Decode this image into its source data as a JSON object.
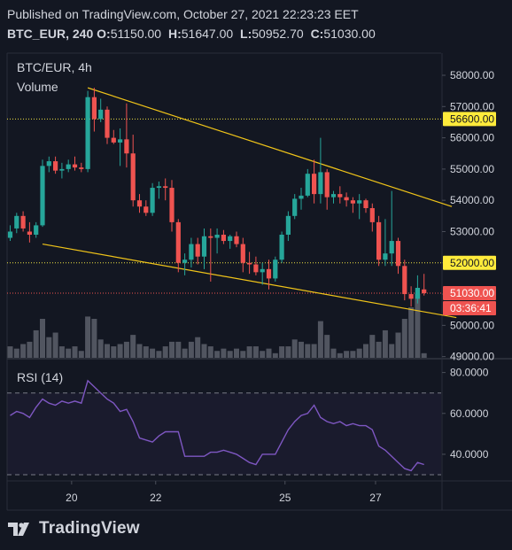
{
  "header": {
    "published": "Published on TradingView.com, October 27, 2021 22:23:23 EET",
    "symbol": "BTC_EUR, 240",
    "o_label": "O:",
    "o_value": "51150.00",
    "h_label": "H:",
    "h_value": "51647.00",
    "l_label": "L:",
    "l_value": "50952.70",
    "c_label": "C:",
    "c_value": "51030.00"
  },
  "pane": {
    "symbol_label": "BTC/EUR, 4h",
    "volume_label": "Volume",
    "rsi_label": "RSI (14)"
  },
  "price_badges": {
    "level_1": "56600.00",
    "level_2": "52000.00",
    "last_price": "51030.00",
    "countdown": "03:36:41"
  },
  "footer": {
    "brand": "TradingView",
    "logo_icon": "tradingview-logo-icon"
  },
  "colors": {
    "up": "#26a69a",
    "down": "#ef5350",
    "line": "#f0c419",
    "dotted": "#f0e442",
    "rsi": "#7e57c2",
    "volume": "#5d606b",
    "badge_yellow": "#ffeb3b",
    "badge_red": "#ef5350"
  },
  "chart_data": [
    {
      "type": "candlestick",
      "title": "BTC/EUR, 4h",
      "x_ticks": [
        "20",
        "22",
        "25",
        "27"
      ],
      "y_ticks": [
        "49000.00",
        "50000.00",
        "51000.00",
        "52000.00",
        "53000.00",
        "54000.00",
        "55000.00",
        "56000.00",
        "57000.00",
        "58000.00"
      ],
      "ylim": [
        48900,
        58600
      ],
      "horizontal_levels": [
        56600,
        52000
      ],
      "last_price": 51030,
      "ohlc": [
        [
          52800,
          53200,
          52700,
          53000
        ],
        [
          53100,
          53600,
          52950,
          53500
        ],
        [
          53500,
          53650,
          53000,
          53100
        ],
        [
          53000,
          53300,
          52650,
          52900
        ],
        [
          52900,
          53300,
          52800,
          53200
        ],
        [
          53200,
          55300,
          53150,
          55100
        ],
        [
          55100,
          55400,
          54900,
          55250
        ],
        [
          55250,
          55400,
          54850,
          54950
        ],
        [
          54950,
          55200,
          54700,
          55000
        ],
        [
          55000,
          55300,
          54900,
          55150
        ],
        [
          55150,
          55400,
          54950,
          55050
        ],
        [
          55050,
          55200,
          54900,
          55000
        ],
        [
          55000,
          57500,
          54900,
          57300
        ],
        [
          57300,
          57600,
          56200,
          56600
        ],
        [
          56600,
          57250,
          56500,
          56900
        ],
        [
          56900,
          57000,
          55800,
          56000
        ],
        [
          56000,
          56250,
          55800,
          55850
        ],
        [
          55850,
          56300,
          55100,
          55950
        ],
        [
          55950,
          57100,
          55050,
          55500
        ],
        [
          55500,
          56100,
          53800,
          54000
        ],
        [
          54000,
          54200,
          53600,
          53800
        ],
        [
          53800,
          54000,
          53500,
          53600
        ],
        [
          53600,
          54550,
          53500,
          54400
        ],
        [
          54400,
          54600,
          54050,
          54450
        ],
        [
          54450,
          54700,
          54000,
          54400
        ],
        [
          54400,
          54650,
          53000,
          53300
        ],
        [
          53300,
          53400,
          51700,
          52000
        ],
        [
          52000,
          52300,
          51600,
          52100
        ],
        [
          52100,
          52800,
          51850,
          52600
        ],
        [
          52600,
          52800,
          51950,
          52200
        ],
        [
          52200,
          53100,
          51800,
          52850
        ],
        [
          52850,
          53100,
          51400,
          52800
        ],
        [
          52800,
          53100,
          52300,
          52900
        ],
        [
          52900,
          53050,
          52600,
          52700
        ],
        [
          52700,
          52900,
          52450,
          52850
        ],
        [
          52850,
          53000,
          52500,
          52600
        ],
        [
          52600,
          52800,
          51700,
          52000
        ],
        [
          52000,
          52350,
          51650,
          51950
        ],
        [
          51950,
          52200,
          51600,
          51700
        ],
        [
          51700,
          52000,
          51300,
          51800
        ],
        [
          51800,
          52100,
          51150,
          51500
        ],
        [
          51500,
          52200,
          51400,
          52100
        ],
        [
          52100,
          53000,
          52000,
          52900
        ],
        [
          52900,
          53650,
          52700,
          53500
        ],
        [
          53500,
          54200,
          53400,
          54050
        ],
        [
          54050,
          54400,
          53700,
          54150
        ],
        [
          54150,
          55000,
          54100,
          54850
        ],
        [
          54850,
          55300,
          53900,
          54200
        ],
        [
          54200,
          56000,
          53900,
          54900
        ],
        [
          54900,
          55000,
          53700,
          54100
        ],
        [
          54100,
          54300,
          53900,
          54200
        ],
        [
          54200,
          54450,
          53900,
          54100
        ],
        [
          54100,
          54250,
          53800,
          54000
        ],
        [
          54000,
          54100,
          53600,
          53900
        ],
        [
          53900,
          54200,
          53400,
          54000
        ],
        [
          54000,
          54050,
          53600,
          53750
        ],
        [
          53750,
          53900,
          53000,
          53300
        ],
        [
          53300,
          53500,
          51900,
          52100
        ],
        [
          52100,
          53400,
          51900,
          52300
        ],
        [
          52300,
          54300,
          51900,
          52700
        ],
        [
          52700,
          52800,
          51650,
          51900
        ],
        [
          51900,
          52100,
          50800,
          51000
        ],
        [
          51000,
          51250,
          50600,
          50850
        ],
        [
          50850,
          51600,
          50700,
          51200
        ],
        [
          51150,
          51647,
          50952.7,
          51030
        ]
      ],
      "volume": [
        5,
        4,
        6,
        7,
        12,
        17,
        9,
        11,
        5,
        4,
        5,
        3,
        18,
        17,
        8,
        6,
        5,
        6,
        7,
        10,
        6,
        5,
        4,
        3,
        5,
        7,
        7,
        4,
        7,
        9,
        6,
        5,
        3,
        4,
        3,
        4,
        3,
        5,
        5,
        3,
        4,
        2,
        5,
        5,
        8,
        7,
        6,
        6,
        16,
        10,
        4,
        2,
        3,
        3,
        4,
        6,
        10,
        7,
        12,
        6,
        11,
        17,
        22,
        28,
        2
      ],
      "volume_ylim": [
        0,
        30
      ],
      "trendlines": [
        {
          "from": [
            12,
            57600
          ],
          "to": [
            68.3,
            53800
          ]
        },
        {
          "from": [
            5,
            52600
          ],
          "to": [
            69,
            50250
          ]
        }
      ]
    },
    {
      "type": "line",
      "title": "RSI (14)",
      "y_ticks": [
        "40.0000",
        "60.0000",
        "80.0000"
      ],
      "ylim": [
        28,
        82
      ],
      "bands": [
        70,
        30
      ],
      "values": [
        59,
        61,
        60,
        58,
        63,
        67,
        65,
        64,
        66,
        65,
        66,
        65,
        76,
        73,
        70,
        67,
        65,
        61,
        62,
        56,
        48,
        47,
        46,
        49,
        51,
        51,
        51,
        39,
        39,
        39,
        39,
        41,
        41,
        42,
        41,
        40,
        38,
        36,
        35,
        40,
        40,
        40,
        46,
        52,
        56,
        59,
        60,
        64,
        58,
        56,
        55,
        56,
        54,
        55,
        54,
        54,
        52,
        44,
        42,
        39,
        36,
        33,
        32,
        36,
        35
      ]
    }
  ]
}
